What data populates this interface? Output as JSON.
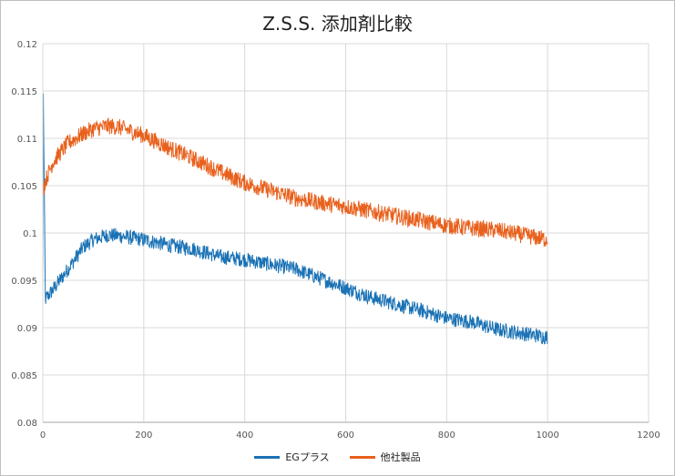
{
  "chart_data": {
    "type": "line",
    "title": "Z.S.S. 添加剤比較",
    "xlabel": "",
    "ylabel": "",
    "xlim": [
      0,
      1200
    ],
    "ylim": [
      0.08,
      0.12
    ],
    "x_ticks": [
      0,
      200,
      400,
      600,
      800,
      1000,
      1200
    ],
    "y_ticks": [
      0.08,
      0.085,
      0.09,
      0.095,
      0.1,
      0.105,
      0.11,
      0.115,
      0.12
    ],
    "grid": true,
    "legend_position": "bottom",
    "series": [
      {
        "name": "EGプラス",
        "color": "#1a72b5",
        "x": [
          0,
          1,
          5,
          20,
          50,
          80,
          100,
          130,
          150,
          200,
          250,
          300,
          350,
          400,
          450,
          500,
          550,
          600,
          650,
          700,
          750,
          800,
          850,
          900,
          950,
          1000
        ],
        "y": [
          0.092,
          0.1145,
          0.093,
          0.094,
          0.0962,
          0.0985,
          0.0993,
          0.0998,
          0.0997,
          0.0993,
          0.0987,
          0.0983,
          0.0975,
          0.0972,
          0.0967,
          0.0962,
          0.0952,
          0.0942,
          0.0932,
          0.0925,
          0.0918,
          0.091,
          0.0906,
          0.0898,
          0.0894,
          0.089
        ],
        "band": 0.0008
      },
      {
        "name": "他社製品",
        "color": "#e8601c",
        "x": [
          0,
          5,
          20,
          50,
          80,
          100,
          130,
          150,
          200,
          250,
          300,
          350,
          400,
          450,
          500,
          550,
          600,
          650,
          700,
          750,
          800,
          850,
          900,
          950,
          1000
        ],
        "y": [
          0.1045,
          0.1055,
          0.1075,
          0.1095,
          0.1105,
          0.111,
          0.1113,
          0.1112,
          0.1103,
          0.109,
          0.1078,
          0.1065,
          0.1053,
          0.1045,
          0.1037,
          0.1032,
          0.1028,
          0.1023,
          0.1018,
          0.1013,
          0.1008,
          0.1005,
          0.1003,
          0.0998,
          0.0993
        ],
        "band": 0.0009
      }
    ]
  }
}
